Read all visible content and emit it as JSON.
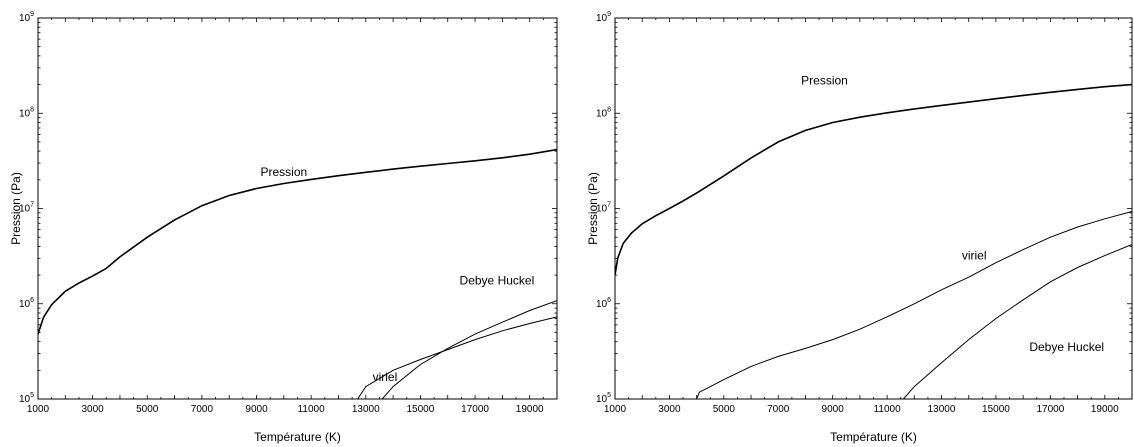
{
  "chart_data": [
    {
      "type": "line",
      "xlabel": "Température (K)",
      "ylabel": "Pression (Pa)",
      "xlim": [
        1000,
        20000
      ],
      "ylim": [
        100000,
        1000000000
      ],
      "yscale": "log",
      "xticks": [
        1000,
        3000,
        5000,
        7000,
        9000,
        11000,
        13000,
        15000,
        17000,
        19000
      ],
      "yticks": [
        {
          "base": "10",
          "exp": "5",
          "value": 100000
        },
        {
          "base": "10",
          "exp": "6",
          "value": 1000000
        },
        {
          "base": "10",
          "exp": "7",
          "value": 10000000
        },
        {
          "base": "10",
          "exp": "8",
          "value": 100000000
        },
        {
          "base": "10",
          "exp": "9",
          "value": 1000000000
        }
      ],
      "annotations": [
        {
          "text": "Pression",
          "x": 10000,
          "y": 22000000
        },
        {
          "text": "Debye Huckel",
          "x": 17800,
          "y": 1600000
        },
        {
          "text": "viriel",
          "x": 13700,
          "y": 155000
        }
      ],
      "series": [
        {
          "x": [
            1000,
            1200,
            1500,
            2000,
            2500,
            3000,
            3500,
            4000,
            5000,
            6000,
            7000,
            8000,
            9000,
            10000,
            11000,
            12000,
            13000,
            14000,
            15000,
            16000,
            17000,
            18000,
            19000,
            20000
          ],
          "values": [
            480000,
            720000,
            980000,
            1350000,
            1650000,
            1950000,
            2350000,
            3100000,
            5000000,
            7600000,
            10700000,
            13700000,
            16200000,
            18300000,
            20200000,
            22100000,
            24000000,
            25900000,
            27800000,
            29700000,
            31700000,
            34100000,
            37200000,
            41500000
          ]
        },
        {
          "x": [
            13600,
            14000,
            15000,
            16000,
            17000,
            18000,
            19000,
            20000
          ],
          "values": [
            100000,
            135000,
            230000,
            340000,
            480000,
            640000,
            850000,
            1080000
          ]
        },
        {
          "x": [
            12700,
            13000,
            14000,
            15000,
            16000,
            17000,
            18000,
            19000,
            20000
          ],
          "values": [
            100000,
            135000,
            200000,
            260000,
            330000,
            420000,
            520000,
            620000,
            730000
          ]
        }
      ]
    },
    {
      "type": "line",
      "xlabel": "Température (K)",
      "ylabel": "Pression (Pa)",
      "xlim": [
        1000,
        20000
      ],
      "ylim": [
        100000,
        1000000000
      ],
      "yscale": "log",
      "xticks": [
        1000,
        3000,
        5000,
        7000,
        9000,
        11000,
        13000,
        15000,
        17000,
        19000
      ],
      "yticks": [
        {
          "base": "10",
          "exp": "5",
          "value": 100000
        },
        {
          "base": "10",
          "exp": "6",
          "value": 1000000
        },
        {
          "base": "10",
          "exp": "7",
          "value": 10000000
        },
        {
          "base": "10",
          "exp": "8",
          "value": 100000000
        },
        {
          "base": "10",
          "exp": "9",
          "value": 1000000000
        }
      ],
      "annotations": [
        {
          "text": "Pression",
          "x": 8700,
          "y": 200000000
        },
        {
          "text": "viriel",
          "x": 14200,
          "y": 2900000
        },
        {
          "text": "Debye Huckel",
          "x": 17600,
          "y": 320000
        }
      ],
      "series": [
        {
          "x": [
            1000,
            1100,
            1300,
            1600,
            2000,
            2500,
            3000,
            3500,
            4000,
            5000,
            6000,
            7000,
            8000,
            9000,
            10000,
            11000,
            12000,
            13000,
            14000,
            15000,
            16000,
            17000,
            18000,
            19000,
            20000
          ],
          "values": [
            2000000,
            3000000,
            4300000,
            5500000,
            6900000,
            8400000,
            10000000,
            12000000,
            14500000,
            22000000,
            34000000,
            50000000,
            66000000,
            80000000,
            91000000,
            101000000,
            111000000,
            121000000,
            131000000,
            142000000,
            154000000,
            166000000,
            178000000,
            190000000,
            200000000
          ]
        },
        {
          "x": [
            4000,
            4100,
            5000,
            6000,
            7000,
            8000,
            9000,
            10000,
            11000,
            12000,
            13000,
            14000,
            15000,
            16000,
            17000,
            18000,
            19000,
            20000
          ],
          "values": [
            100000,
            118000,
            160000,
            220000,
            280000,
            340000,
            420000,
            540000,
            730000,
            1000000,
            1400000,
            1900000,
            2700000,
            3700000,
            5000000,
            6400000,
            7800000,
            9300000
          ]
        },
        {
          "x": [
            11600,
            12000,
            13000,
            14000,
            15000,
            16000,
            17000,
            18000,
            19000,
            20000
          ],
          "values": [
            100000,
            135000,
            240000,
            420000,
            700000,
            1100000,
            1700000,
            2400000,
            3200000,
            4200000
          ]
        }
      ]
    }
  ]
}
